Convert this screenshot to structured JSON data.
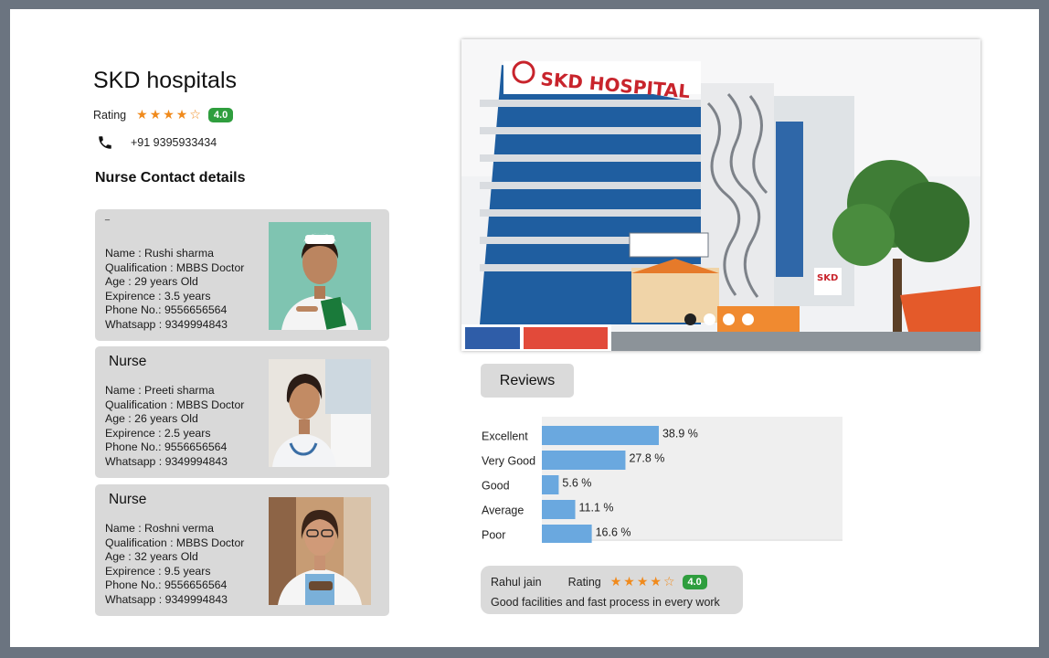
{
  "hospital": {
    "name": "SKD hospitals",
    "rating_label": "Rating",
    "stars": "★★★★☆",
    "rating_value": "4.0",
    "phone": "+91 9395933434",
    "nurse_section_title": "Nurse Contact details"
  },
  "nurses": [
    {
      "role": "_",
      "name": "Name :  Rushi sharma",
      "qualification": "Qualification : MBBS Doctor",
      "age": "Age : 29 years Old",
      "experience": "Expirence : 3.5 years",
      "phone": "Phone No.: 9556656564",
      "whatsapp": "Whatsapp : 9349994843"
    },
    {
      "role": "Nurse",
      "name": "Name :  Preeti sharma",
      "qualification": "Qualification : MBBS Doctor",
      "age": "Age : 26 years Old",
      "experience": "Expirence : 2.5 years",
      "phone": "Phone No.: 9556656564",
      "whatsapp": "Whatsapp : 9349994843"
    },
    {
      "role": "Nurse",
      "name": "Name :  Roshni verma",
      "qualification": "Qualification : MBBS Doctor",
      "age": "Age : 32 years Old",
      "experience": "Expirence : 9.5 years",
      "phone": "Phone No.: 9556656564",
      "whatsapp": "Whatsapp : 9349994843"
    }
  ],
  "hero": {
    "sign_text": "SKD HOSPITAL",
    "side_sign": "SKD",
    "carousel_active_index": 0,
    "carousel_count": 4
  },
  "reviews": {
    "button_label": "Reviews",
    "reviewer_name": "Rahul jain",
    "rating_label": "Rating",
    "stars": "★★★★☆",
    "rating_value": "4.0",
    "text": "Good facilities and fast process in every work"
  },
  "colors": {
    "accent_star": "#f08a1c",
    "badge_green": "#2f9e3e",
    "bar_blue": "#6aa8df"
  },
  "chart_data": {
    "type": "bar",
    "orientation": "horizontal",
    "categories": [
      "Excellent",
      "Very Good",
      "Good",
      "Average",
      "Poor"
    ],
    "values": [
      38.9,
      27.8,
      5.6,
      11.1,
      16.6
    ],
    "value_labels": [
      "38.9 %",
      "27.8 %",
      "5.6 %",
      "11.1 %",
      "16.6 %"
    ],
    "title": "",
    "xlabel": "",
    "ylabel": "",
    "xlim": [
      0,
      100
    ]
  }
}
